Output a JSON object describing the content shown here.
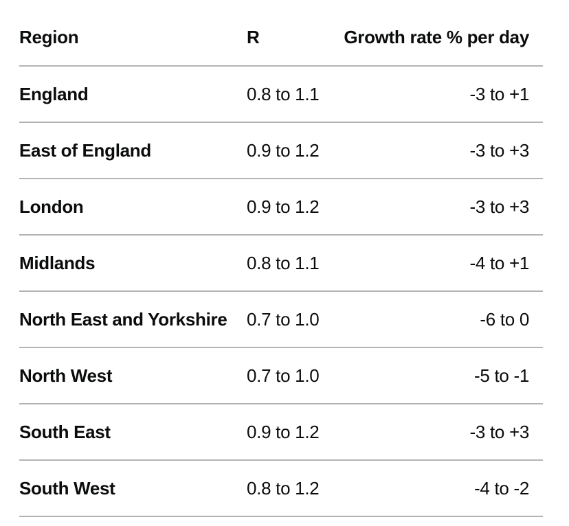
{
  "table": {
    "headers": {
      "region": "Region",
      "r": "R",
      "growth": "Growth rate % per day"
    },
    "rows": [
      {
        "region": "England",
        "r": "0.8 to 1.1",
        "growth": "-3 to +1"
      },
      {
        "region": "East of England",
        "r": "0.9 to 1.2",
        "growth": "-3 to +3"
      },
      {
        "region": "London",
        "r": "0.9 to 1.2",
        "growth": "-3 to +3"
      },
      {
        "region": "Midlands",
        "r": "0.8 to 1.1",
        "growth": "-4 to +1"
      },
      {
        "region": "North East and Yorkshire",
        "r": "0.7 to 1.0",
        "growth": "-6 to 0"
      },
      {
        "region": "North West",
        "r": "0.7 to 1.0",
        "growth": "-5 to -1"
      },
      {
        "region": "South East",
        "r": "0.9 to 1.2",
        "growth": "-3 to +3"
      },
      {
        "region": "South West",
        "r": "0.8 to 1.2",
        "growth": "-4 to -2"
      }
    ]
  }
}
